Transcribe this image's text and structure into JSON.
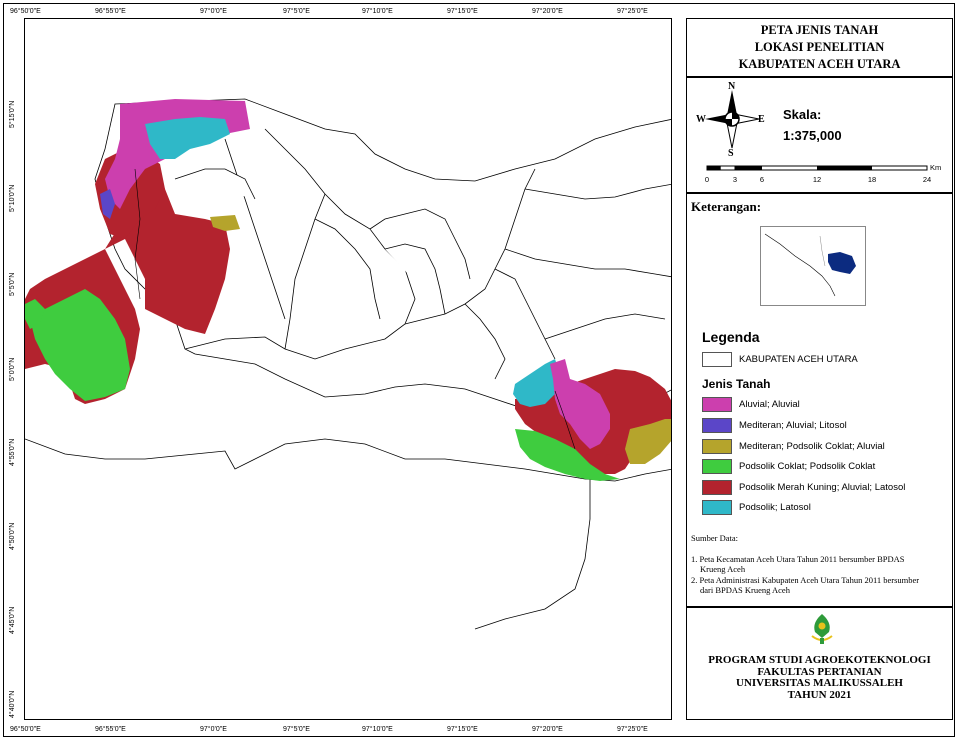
{
  "title": {
    "line1": "PETA JENIS TANAH",
    "line2": "LOKASI PENELITIAN",
    "line3": "KABUPATEN ACEH UTARA"
  },
  "north_arrow": {
    "n": "N",
    "s": "S",
    "e": "E",
    "w": "W"
  },
  "scale": {
    "label": "Skala:",
    "value": "1:375,000",
    "unit": "Km",
    "ticks": [
      "0",
      "3",
      "6",
      "12",
      "18",
      "24"
    ]
  },
  "keterangan": {
    "title": "Keterangan:"
  },
  "legend": {
    "title": "Legenda",
    "boundary_label": "KABUPATEN ACEH UTARA",
    "soil_title": "Jenis Tanah",
    "items": [
      {
        "label": "Aluvial; Aluvial",
        "color": "#cc3fae"
      },
      {
        "label": "Mediteran; Aluvial; Litosol",
        "color": "#5b46c8"
      },
      {
        "label": "Mediteran; Podsolik Coklat; Aluvial",
        "color": "#b5a42c"
      },
      {
        "label": "Podsolik Coklat; Podsolik Coklat",
        "color": "#3fcc3f"
      },
      {
        "label": "Podsolik Merah Kuning; Aluvial; Latosol",
        "color": "#b3232e"
      },
      {
        "label": "Podsolik; Latosol",
        "color": "#2fb8c8"
      }
    ]
  },
  "sources": {
    "title": "Sumber Data:",
    "item1_line1": "1. Peta Kecamatan Aceh Utara Tahun 2011 bersumber BPDAS",
    "item1_line2": "Krueng Aceh",
    "item2_line1": "2. Peta Administrasi Kabupaten Aceh Utara Tahun 2011 bersumber",
    "item2_line2": "dari BPDAS Krueng Aceh"
  },
  "institution": {
    "line1": "PROGRAM STUDI AGROEKOTEKNOLOGI",
    "line2": "FAKULTAS PERTANIAN",
    "line3": "UNIVERSITAS MALIKUSSALEH",
    "line4": "TAHUN 2021"
  },
  "longitude_labels": [
    "96°50'0\"E",
    "96°55'0\"E",
    "97°0'0\"E",
    "97°5'0\"E",
    "97°10'0\"E",
    "97°15'0\"E",
    "97°20'0\"E",
    "97°25'0\"E"
  ],
  "latitude_labels": [
    "5°15'0\"N",
    "5°10'0\"N",
    "5°5'0\"N",
    "5°0'0\"N",
    "4°55'0\"N",
    "4°50'0\"N",
    "4°45'0\"N",
    "4°40'0\"N"
  ]
}
